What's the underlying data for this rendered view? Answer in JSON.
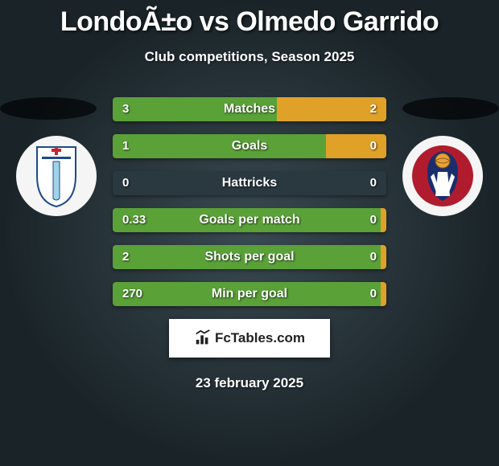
{
  "title": "LondoÃ±o vs Olmedo Garrido",
  "subtitle": "Club competitions, Season 2025",
  "date": "23 february 2025",
  "branding": {
    "label": "FcTables.com"
  },
  "colors": {
    "bar_left": "#5aa138",
    "bar_right": "#e0a128",
    "bar_track": "#2a3840"
  },
  "stats": [
    {
      "label": "Matches",
      "left_val": "3",
      "right_val": "2",
      "left_width_pct": 60,
      "right_width_pct": 40
    },
    {
      "label": "Goals",
      "left_val": "1",
      "right_val": "0",
      "left_width_pct": 78,
      "right_width_pct": 22
    },
    {
      "label": "Hattricks",
      "left_val": "0",
      "right_val": "0",
      "left_width_pct": 0,
      "right_width_pct": 0
    },
    {
      "label": "Goals per match",
      "left_val": "0.33",
      "right_val": "0",
      "left_width_pct": 98,
      "right_width_pct": 2
    },
    {
      "label": "Shots per goal",
      "left_val": "2",
      "right_val": "0",
      "left_width_pct": 98,
      "right_width_pct": 2
    },
    {
      "label": "Min per goal",
      "left_val": "270",
      "right_val": "0",
      "left_width_pct": 98,
      "right_width_pct": 2
    }
  ],
  "badges": {
    "left_name": "club-badge-left",
    "right_name": "club-badge-right"
  }
}
